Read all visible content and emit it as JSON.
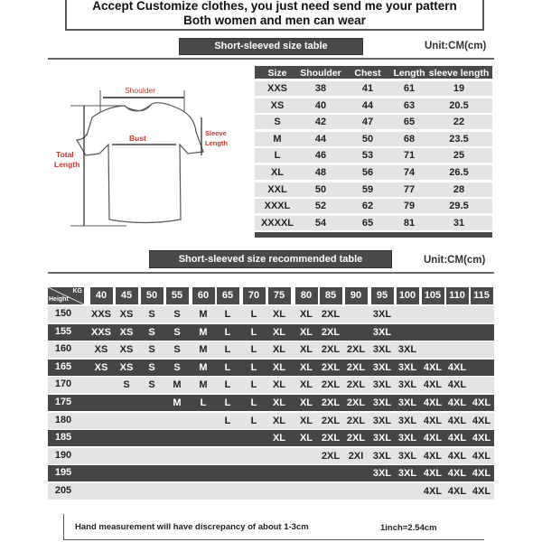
{
  "header": {
    "line1": "Accept Customize clothes, you just need send me your pattern",
    "line2": "Both women and men can wear"
  },
  "size_table": {
    "title": "Short-sleeved size  table",
    "unit": "Unit:CM(cm)",
    "columns": [
      "Size",
      "Shoulder",
      "Chest",
      "Length",
      "sleeve length"
    ],
    "rows": [
      [
        "XXS",
        "38",
        "41",
        "61",
        "19"
      ],
      [
        "XS",
        "40",
        "44",
        "63",
        "20.5"
      ],
      [
        "S",
        "42",
        "47",
        "65",
        "22"
      ],
      [
        "M",
        "44",
        "50",
        "68",
        "23.5"
      ],
      [
        "L",
        "46",
        "53",
        "71",
        "25"
      ],
      [
        "XL",
        "48",
        "56",
        "74",
        "26.5"
      ],
      [
        "XXL",
        "50",
        "59",
        "77",
        "28"
      ],
      [
        "XXXL",
        "52",
        "62",
        "79",
        "29.5"
      ],
      [
        "XXXXL",
        "54",
        "65",
        "81",
        "31"
      ]
    ]
  },
  "diagram": {
    "shoulder": "Shoulder",
    "bust": "Bust",
    "sleeve1": "Sleeve",
    "sleeve2": "Length",
    "total1": "Total",
    "total2": "Length",
    "label_color": "#c0392b"
  },
  "rec_table": {
    "title": "Short-sleeved size recommended table",
    "unit": "Unit:CM(cm)",
    "corner_kg": "KG",
    "corner_height": "Height",
    "weights": [
      "40",
      "45",
      "50",
      "55",
      "60",
      "65",
      "70",
      "75",
      "80",
      "85",
      "90",
      "95",
      "100",
      "105",
      "110",
      "115"
    ],
    "rows": [
      {
        "height": "150",
        "sizes": [
          "XXS",
          "XS",
          "S",
          "S",
          "M",
          "L",
          "L",
          "XL",
          "XL",
          "2XL",
          "",
          "3XL",
          "",
          "",
          "",
          ""
        ]
      },
      {
        "height": "155",
        "sizes": [
          "XXS",
          "XS",
          "S",
          "S",
          "M",
          "L",
          "L",
          "XL",
          "XL",
          "2XL",
          "",
          "3XL",
          "",
          "",
          "",
          ""
        ]
      },
      {
        "height": "160",
        "sizes": [
          "XS",
          "XS",
          "S",
          "S",
          "M",
          "L",
          "L",
          "XL",
          "XL",
          "2XL",
          "2XL",
          "3XL",
          "3XL",
          "",
          "",
          ""
        ]
      },
      {
        "height": "165",
        "sizes": [
          "XS",
          "XS",
          "S",
          "S",
          "M",
          "L",
          "L",
          "XL",
          "XL",
          "2XL",
          "2XL",
          "3XL",
          "3XL",
          "4XL",
          "4XL",
          ""
        ]
      },
      {
        "height": "170",
        "sizes": [
          "",
          "S",
          "S",
          "M",
          "M",
          "L",
          "L",
          "XL",
          "XL",
          "2XL",
          "2XL",
          "3XL",
          "3XL",
          "4XL",
          "4XL",
          ""
        ]
      },
      {
        "height": "175",
        "sizes": [
          "",
          "",
          "",
          "M",
          "L",
          "L",
          "L",
          "XL",
          "XL",
          "2XL",
          "2XL",
          "3XL",
          "3XL",
          "4XL",
          "4XL",
          "4XL"
        ]
      },
      {
        "height": "180",
        "sizes": [
          "",
          "",
          "",
          "",
          "",
          "L",
          "L",
          "XL",
          "XL",
          "2XL",
          "2XL",
          "3XL",
          "3XL",
          "4XL",
          "4XL",
          "4XL"
        ]
      },
      {
        "height": "185",
        "sizes": [
          "",
          "",
          "",
          "",
          "",
          "",
          "",
          "XL",
          "XL",
          "2XL",
          "2XL",
          "3XL",
          "3XL",
          "4XL",
          "4XL",
          "4XL"
        ]
      },
      {
        "height": "190",
        "sizes": [
          "",
          "",
          "",
          "",
          "",
          "",
          "",
          "",
          "",
          "2XL",
          "2XI",
          "3XL",
          "3XL",
          "4XL",
          "4XL",
          "4XL"
        ]
      },
      {
        "height": "195",
        "sizes": [
          "",
          "",
          "",
          "",
          "",
          "",
          "",
          "",
          "",
          "",
          "",
          "3XL",
          "3XL",
          "4XL",
          "4XL",
          "4XL"
        ]
      },
      {
        "height": "205",
        "sizes": [
          "",
          "",
          "",
          "",
          "",
          "",
          "",
          "",
          "",
          "",
          "",
          "",
          "",
          "4XL",
          "4XL",
          "4XL"
        ]
      }
    ]
  },
  "footer": {
    "note": "Hand measurement will have discrepancy of about  1-3cm",
    "conversion": "1inch=2.54cm"
  }
}
